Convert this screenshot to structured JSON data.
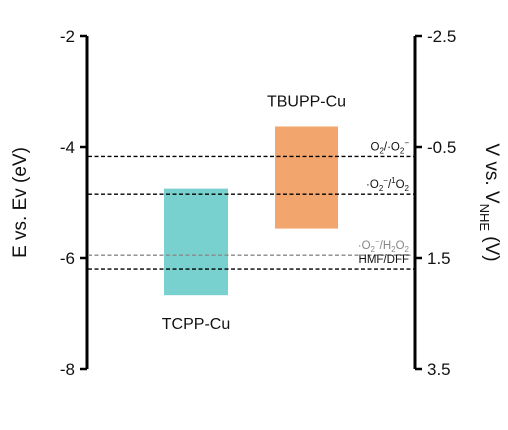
{
  "chart_data": {
    "type": "bar",
    "left_axis": {
      "label": "E vs. Ev (eV)",
      "range": [
        -8,
        -2
      ],
      "ticks": [
        -8,
        -6,
        -4,
        -2
      ],
      "tick_labels": [
        "-8",
        "-6",
        "-4",
        "-2"
      ]
    },
    "right_axis": {
      "label_main": "V vs. V",
      "label_sub": "NHE",
      "label_tail": " (V)",
      "range": [
        3.5,
        -2.5
      ],
      "ticks": [
        3.5,
        1.5,
        -0.5,
        -2.5
      ],
      "tick_labels": [
        "3.5",
        "1.5",
        "-0.5",
        "-2.5"
      ]
    },
    "bars": [
      {
        "name": "TCPP-Cu",
        "bottom": -6.67,
        "top": -4.75,
        "color": "#79d1cf",
        "label_position": "below"
      },
      {
        "name": "TBUPP-Cu",
        "bottom": -5.47,
        "top": -3.63,
        "color": "#f2a56d",
        "label_position": "above"
      }
    ],
    "reference_levels": [
      {
        "value": -4.17,
        "style": "dashed",
        "color": "#000000",
        "label_parts": [
          {
            "t": "O"
          },
          {
            "t": "2",
            "sub": true
          },
          {
            "t": "/·O"
          },
          {
            "t": "2",
            "sub": true
          },
          {
            "t": "−",
            "sup": true
          }
        ]
      },
      {
        "value": -4.85,
        "style": "dashed",
        "color": "#000000",
        "label_parts": [
          {
            "t": "·O"
          },
          {
            "t": "2",
            "sub": true
          },
          {
            "t": "−",
            "sup": true
          },
          {
            "t": "/"
          },
          {
            "t": "1",
            "sup": true
          },
          {
            "t": "O"
          },
          {
            "t": "2",
            "sub": true
          }
        ]
      },
      {
        "value": -5.95,
        "style": "dashed",
        "color": "#888888",
        "label_parts": [
          {
            "t": "·O"
          },
          {
            "t": "2",
            "sub": true
          },
          {
            "t": "−",
            "sup": true
          },
          {
            "t": "/H"
          },
          {
            "t": "2",
            "sub": true
          },
          {
            "t": "O"
          },
          {
            "t": "2",
            "sub": true
          }
        ]
      },
      {
        "value": -6.2,
        "style": "dashed",
        "color": "#000000",
        "label_parts": [
          {
            "t": "HMF/DFF"
          }
        ]
      }
    ]
  }
}
